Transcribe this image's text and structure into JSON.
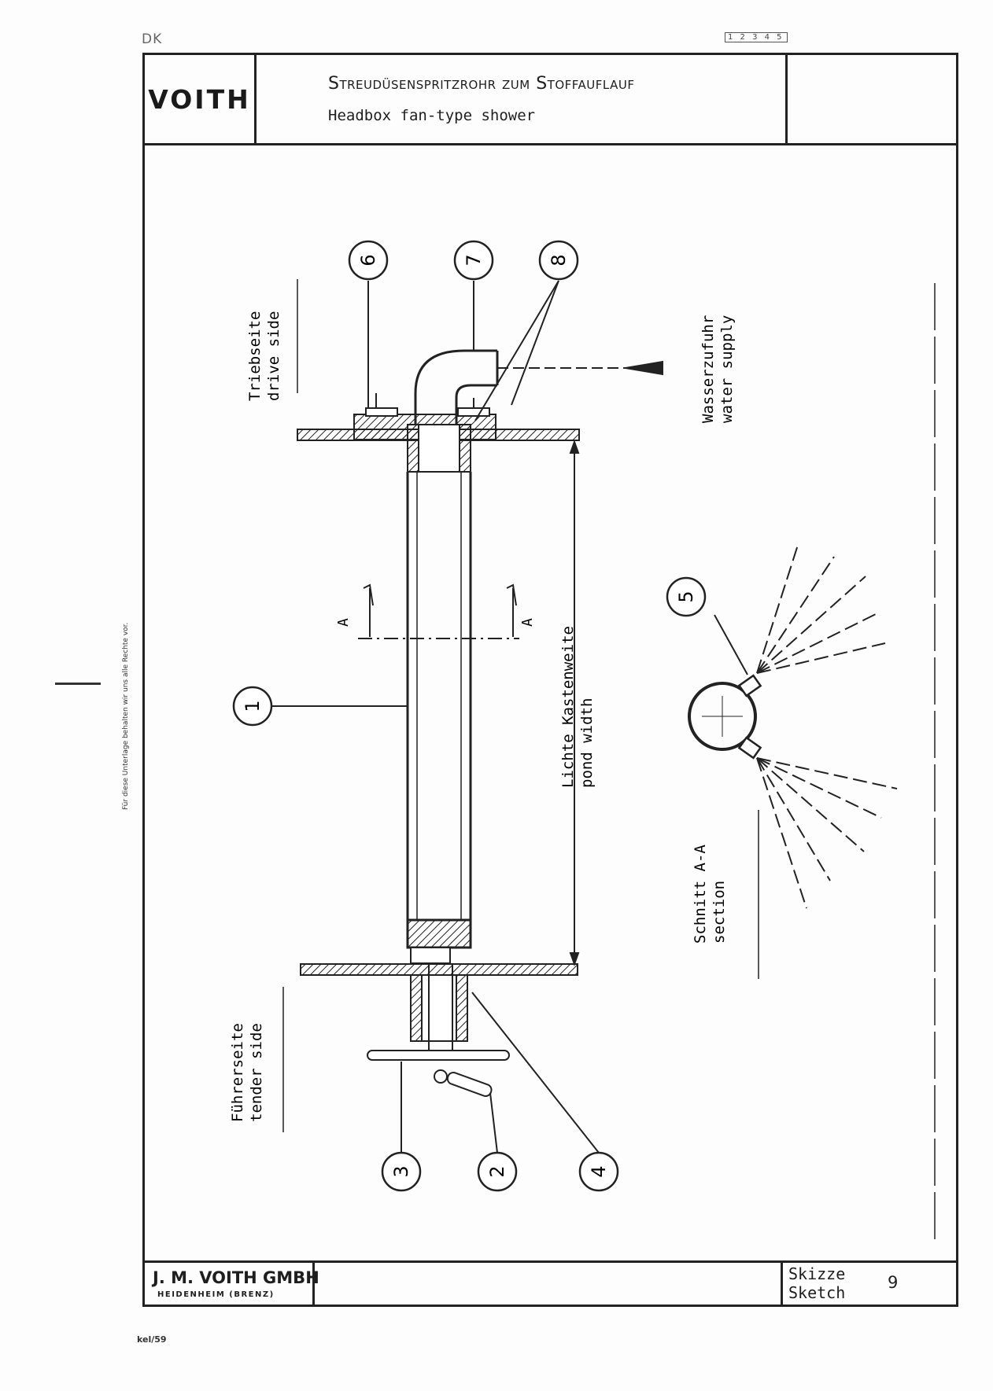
{
  "header": {
    "corner_code": "DK",
    "page_number": "1 2 3 4 5",
    "logo": "VOITH",
    "title_de": "Streudüsenspritzrohr zum Stoffauflauf",
    "title_en": "Headbox fan-type shower"
  },
  "footer": {
    "company": "J. M. VOITH GMBH",
    "location": "HEIDENHEIM (BRENZ)",
    "sketch_de": "Skizze",
    "sketch_en": "Sketch",
    "sheet_number": "9",
    "reference": "kel/59"
  },
  "margin_note": "Für diese Unterlage behalten wir uns alle Rechte vor.",
  "drawing": {
    "drive_side_de": "Triebseite",
    "drive_side_en": "drive side",
    "tender_side_de": "Führerseite",
    "tender_side_en": "tender side",
    "water_supply_de": "Wasserzufuhr",
    "water_supply_en": "water supply",
    "pond_width_de": "Lichte Kastenweite",
    "pond_width_en": "pond width",
    "section_de": "Schnitt  A-A",
    "section_en": "section",
    "section_mark": "A",
    "callouts": [
      "1",
      "2",
      "3",
      "4",
      "5",
      "6",
      "7",
      "8"
    ]
  }
}
